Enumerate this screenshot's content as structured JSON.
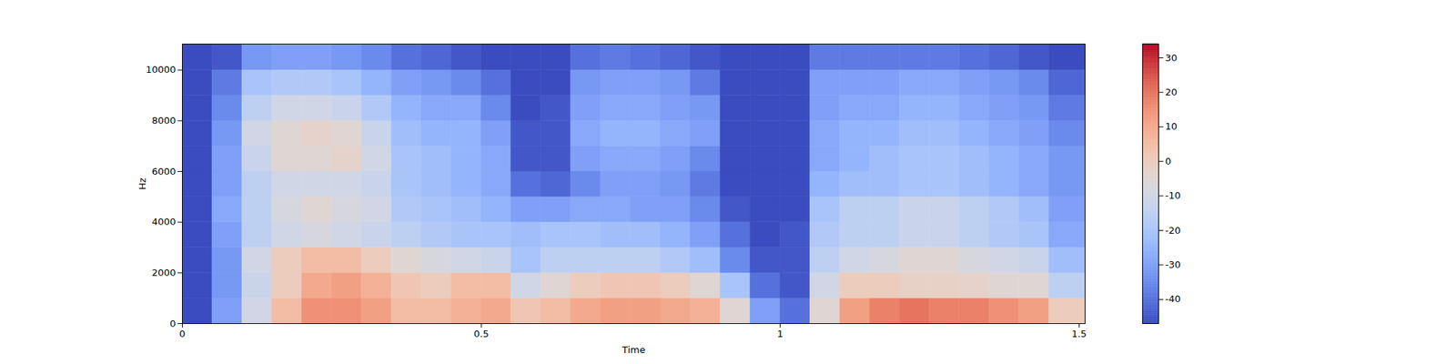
{
  "chart_data": {
    "type": "heatmap",
    "xlabel": "Time",
    "ylabel": "Hz",
    "xlim": [
      0,
      1.51
    ],
    "ylim": [
      0,
      11025
    ],
    "xticks": [
      0,
      0.5,
      1,
      1.5
    ],
    "yticks": [
      0,
      2000,
      4000,
      6000,
      8000,
      10000
    ],
    "time_edges": [
      0,
      0.05,
      0.1,
      0.15,
      0.2,
      0.25,
      0.3,
      0.35,
      0.4,
      0.45,
      0.5,
      0.55,
      0.6,
      0.65,
      0.7,
      0.75,
      0.8,
      0.85,
      0.9,
      0.95,
      1.0,
      1.05,
      1.1,
      1.15,
      1.2,
      1.25,
      1.3,
      1.35,
      1.4,
      1.45,
      1.51
    ],
    "freq_edges": [
      0,
      1000,
      2000,
      3000,
      4000,
      5000,
      6000,
      7000,
      8000,
      9000,
      10000,
      11025
    ],
    "cells": [
      [
        -47,
        -30,
        -10,
        5,
        15,
        15,
        12,
        5,
        5,
        8,
        10,
        2,
        5,
        10,
        12,
        12,
        10,
        8,
        -5,
        -30,
        -40,
        -5,
        12,
        18,
        20,
        18,
        18,
        15,
        12,
        0
      ],
      [
        -47,
        -32,
        -12,
        0,
        10,
        12,
        8,
        2,
        0,
        5,
        5,
        -10,
        -5,
        0,
        2,
        2,
        0,
        -5,
        -20,
        -40,
        -45,
        -10,
        0,
        0,
        -2,
        -2,
        -3,
        -5,
        -5,
        -15
      ],
      [
        -47,
        -32,
        -10,
        0,
        5,
        5,
        0,
        -5,
        -8,
        -10,
        -12,
        -20,
        -15,
        -15,
        -15,
        -15,
        -18,
        -22,
        -35,
        -45,
        -45,
        -15,
        -10,
        -8,
        -5,
        -5,
        -8,
        -10,
        -12,
        -22
      ],
      [
        -47,
        -30,
        -15,
        -10,
        -8,
        -10,
        -12,
        -15,
        -18,
        -20,
        -20,
        -22,
        -20,
        -20,
        -22,
        -22,
        -25,
        -30,
        -40,
        -47,
        -45,
        -18,
        -15,
        -15,
        -12,
        -12,
        -15,
        -18,
        -20,
        -28
      ],
      [
        -47,
        -28,
        -15,
        -8,
        -5,
        -8,
        -10,
        -18,
        -20,
        -22,
        -25,
        -30,
        -30,
        -28,
        -28,
        -30,
        -30,
        -35,
        -45,
        -47,
        -47,
        -20,
        -15,
        -15,
        -12,
        -12,
        -15,
        -18,
        -22,
        -30
      ],
      [
        -47,
        -30,
        -15,
        -10,
        -10,
        -10,
        -12,
        -20,
        -22,
        -25,
        -28,
        -40,
        -42,
        -35,
        -30,
        -30,
        -32,
        -38,
        -47,
        -47,
        -47,
        -25,
        -22,
        -22,
        -20,
        -20,
        -22,
        -25,
        -28,
        -32
      ],
      [
        -47,
        -30,
        -12,
        -5,
        -5,
        -3,
        -10,
        -20,
        -22,
        -25,
        -28,
        -45,
        -45,
        -30,
        -28,
        -28,
        -30,
        -35,
        -47,
        -47,
        -47,
        -28,
        -25,
        -22,
        -20,
        -20,
        -22,
        -25,
        -28,
        -32
      ],
      [
        -47,
        -32,
        -10,
        -5,
        -3,
        -5,
        -12,
        -22,
        -25,
        -25,
        -30,
        -45,
        -45,
        -28,
        -25,
        -25,
        -28,
        -30,
        -47,
        -47,
        -47,
        -28,
        -25,
        -25,
        -22,
        -22,
        -25,
        -28,
        -30,
        -35
      ],
      [
        -47,
        -35,
        -15,
        -10,
        -10,
        -12,
        -18,
        -25,
        -28,
        -28,
        -35,
        -47,
        -45,
        -30,
        -28,
        -28,
        -30,
        -32,
        -47,
        -47,
        -47,
        -30,
        -28,
        -28,
        -25,
        -25,
        -28,
        -30,
        -32,
        -38
      ],
      [
        -47,
        -38,
        -20,
        -18,
        -18,
        -20,
        -25,
        -30,
        -32,
        -35,
        -40,
        -47,
        -47,
        -32,
        -30,
        -30,
        -32,
        -38,
        -47,
        -47,
        -47,
        -30,
        -30,
        -30,
        -28,
        -28,
        -30,
        -32,
        -35,
        -42
      ],
      [
        -47,
        -45,
        -32,
        -30,
        -30,
        -32,
        -35,
        -40,
        -42,
        -45,
        -47,
        -47,
        -47,
        -40,
        -38,
        -40,
        -42,
        -45,
        -47,
        -47,
        -47,
        -38,
        -38,
        -38,
        -38,
        -38,
        -40,
        -42,
        -45,
        -47
      ]
    ],
    "colorbar": {
      "range": [
        -47,
        34
      ],
      "ticks": [
        -40,
        -30,
        -20,
        -10,
        0,
        10,
        20,
        30
      ]
    }
  }
}
